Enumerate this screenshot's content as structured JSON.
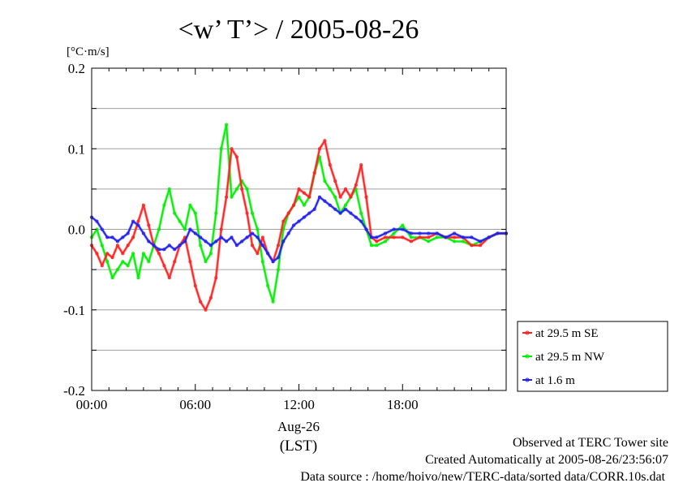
{
  "chart_data": {
    "type": "line",
    "title": "<w’ T’> / 2005-08-26",
    "unit_label": "[°C·m/s]",
    "xlabel": "Aug-26",
    "xlabel2": "(LST)",
    "x_unit": "hours since 00:00 LST",
    "xlim": [
      0,
      24
    ],
    "ylim": [
      -0.2,
      0.2
    ],
    "x_ticks": [
      {
        "value": 0,
        "label": "00:00"
      },
      {
        "value": 6,
        "label": "06:00"
      },
      {
        "value": 12,
        "label": "12:00"
      },
      {
        "value": 18,
        "label": "18:00"
      }
    ],
    "y_ticks": [
      {
        "value": 0.2,
        "label": "0.2"
      },
      {
        "value": 0.1,
        "label": "0.1"
      },
      {
        "value": 0.0,
        "label": "0.0"
      },
      {
        "value": -0.1,
        "label": "-0.1"
      },
      {
        "value": -0.2,
        "label": "-0.2"
      }
    ],
    "grid": true,
    "legend_position": "right, outside plot",
    "series": [
      {
        "name": "at 29.5 m SE",
        "color": "#ff2020",
        "x": [
          0.0,
          0.3,
          0.6,
          0.9,
          1.2,
          1.5,
          1.8,
          2.1,
          2.4,
          2.7,
          3.0,
          3.3,
          3.6,
          3.9,
          4.2,
          4.5,
          4.8,
          5.1,
          5.4,
          5.7,
          6.0,
          6.3,
          6.6,
          6.9,
          7.2,
          7.5,
          7.8,
          8.1,
          8.4,
          8.7,
          9.0,
          9.3,
          9.6,
          9.9,
          10.2,
          10.5,
          10.8,
          11.1,
          11.4,
          11.7,
          12.0,
          12.3,
          12.6,
          12.9,
          13.2,
          13.5,
          13.8,
          14.1,
          14.4,
          14.7,
          15.0,
          15.3,
          15.6,
          15.9,
          16.2,
          16.5,
          17.0,
          17.5,
          18.0,
          18.5,
          19.0,
          19.5,
          20.0,
          20.5,
          21.0,
          21.5,
          22.0,
          22.5,
          23.0,
          23.5,
          24.0
        ],
        "y": [
          -0.02,
          -0.03,
          -0.045,
          -0.03,
          -0.035,
          -0.02,
          -0.03,
          -0.02,
          -0.01,
          0.01,
          0.03,
          0.005,
          -0.02,
          -0.03,
          -0.045,
          -0.06,
          -0.04,
          -0.02,
          -0.01,
          -0.04,
          -0.07,
          -0.09,
          -0.1,
          -0.085,
          -0.06,
          0.0,
          0.04,
          0.1,
          0.09,
          0.05,
          0.02,
          -0.02,
          -0.03,
          -0.01,
          -0.03,
          -0.04,
          -0.02,
          0.01,
          0.02,
          0.03,
          0.05,
          0.045,
          0.04,
          0.07,
          0.1,
          0.11,
          0.08,
          0.06,
          0.04,
          0.05,
          0.04,
          0.055,
          0.08,
          0.04,
          -0.01,
          -0.015,
          -0.01,
          -0.01,
          -0.01,
          -0.015,
          -0.01,
          -0.01,
          -0.005,
          -0.01,
          -0.01,
          -0.01,
          -0.02,
          -0.02,
          -0.01,
          -0.005,
          -0.005
        ]
      },
      {
        "name": "at 29.5 m NW",
        "color": "#00ee00",
        "x": [
          0.0,
          0.3,
          0.6,
          0.9,
          1.2,
          1.5,
          1.8,
          2.1,
          2.4,
          2.7,
          3.0,
          3.3,
          3.6,
          3.9,
          4.2,
          4.5,
          4.8,
          5.1,
          5.4,
          5.7,
          6.0,
          6.3,
          6.6,
          6.9,
          7.2,
          7.5,
          7.8,
          8.1,
          8.4,
          8.7,
          9.0,
          9.3,
          9.6,
          9.9,
          10.2,
          10.5,
          10.8,
          11.1,
          11.4,
          11.7,
          12.0,
          12.3,
          12.6,
          12.9,
          13.2,
          13.5,
          13.8,
          14.1,
          14.4,
          14.7,
          15.0,
          15.3,
          15.6,
          15.9,
          16.2,
          16.5,
          17.0,
          17.5,
          18.0,
          18.5,
          19.0,
          19.5,
          20.0,
          20.5,
          21.0,
          21.5,
          22.0,
          22.5,
          23.0,
          23.5,
          24.0
        ],
        "y": [
          -0.01,
          0.0,
          -0.02,
          -0.04,
          -0.06,
          -0.05,
          -0.04,
          -0.045,
          -0.03,
          -0.06,
          -0.03,
          -0.04,
          -0.02,
          0.0,
          0.03,
          0.05,
          0.02,
          0.01,
          0.0,
          0.03,
          0.02,
          -0.02,
          -0.04,
          -0.03,
          0.02,
          0.1,
          0.13,
          0.04,
          0.05,
          0.06,
          0.05,
          0.02,
          0.0,
          -0.04,
          -0.07,
          -0.09,
          -0.05,
          0.0,
          0.02,
          0.03,
          0.04,
          0.03,
          0.04,
          0.07,
          0.09,
          0.06,
          0.05,
          0.04,
          0.02,
          0.03,
          0.04,
          0.05,
          0.02,
          0.0,
          -0.02,
          -0.02,
          -0.015,
          -0.005,
          0.005,
          -0.01,
          -0.01,
          -0.015,
          -0.01,
          -0.01,
          -0.015,
          -0.015,
          -0.02,
          -0.015,
          -0.01,
          -0.005,
          -0.005
        ]
      },
      {
        "name": "at 1.6 m",
        "color": "#2020ee",
        "x": [
          0.0,
          0.3,
          0.6,
          0.9,
          1.2,
          1.5,
          1.8,
          2.1,
          2.4,
          2.7,
          3.0,
          3.3,
          3.6,
          3.9,
          4.2,
          4.5,
          4.8,
          5.1,
          5.4,
          5.7,
          6.0,
          6.3,
          6.6,
          6.9,
          7.2,
          7.5,
          7.8,
          8.1,
          8.4,
          8.7,
          9.0,
          9.3,
          9.6,
          9.9,
          10.2,
          10.5,
          10.8,
          11.1,
          11.4,
          11.7,
          12.0,
          12.3,
          12.6,
          12.9,
          13.2,
          13.5,
          13.8,
          14.1,
          14.4,
          14.7,
          15.0,
          15.3,
          15.6,
          15.9,
          16.2,
          16.5,
          17.0,
          17.5,
          18.0,
          18.5,
          19.0,
          19.5,
          20.0,
          20.5,
          21.0,
          21.5,
          22.0,
          22.5,
          23.0,
          23.5,
          24.0
        ],
        "y": [
          0.015,
          0.01,
          0.0,
          -0.01,
          -0.01,
          -0.015,
          -0.01,
          -0.005,
          0.01,
          0.005,
          -0.005,
          -0.015,
          -0.02,
          -0.025,
          -0.025,
          -0.02,
          -0.025,
          -0.02,
          -0.015,
          0.0,
          -0.005,
          -0.01,
          -0.015,
          -0.02,
          -0.015,
          -0.01,
          -0.015,
          -0.01,
          -0.02,
          -0.015,
          -0.01,
          -0.005,
          -0.01,
          -0.02,
          -0.03,
          -0.04,
          -0.035,
          -0.015,
          -0.005,
          0.005,
          0.01,
          0.015,
          0.02,
          0.025,
          0.04,
          0.035,
          0.03,
          0.025,
          0.02,
          0.025,
          0.02,
          0.015,
          0.01,
          0.0,
          -0.01,
          -0.01,
          -0.005,
          0.0,
          0.0,
          -0.005,
          -0.005,
          -0.005,
          -0.005,
          -0.01,
          -0.005,
          -0.01,
          -0.01,
          -0.015,
          -0.01,
          -0.005,
          -0.005
        ]
      }
    ]
  },
  "footer": {
    "line1": "Observed at TERC Tower site",
    "line2": "Created Automatically at 2005-08-26/23:56:07",
    "line3": "Data source : /home/hoivo/new/TERC-data/sorted  data/CORR.10s.dat"
  }
}
